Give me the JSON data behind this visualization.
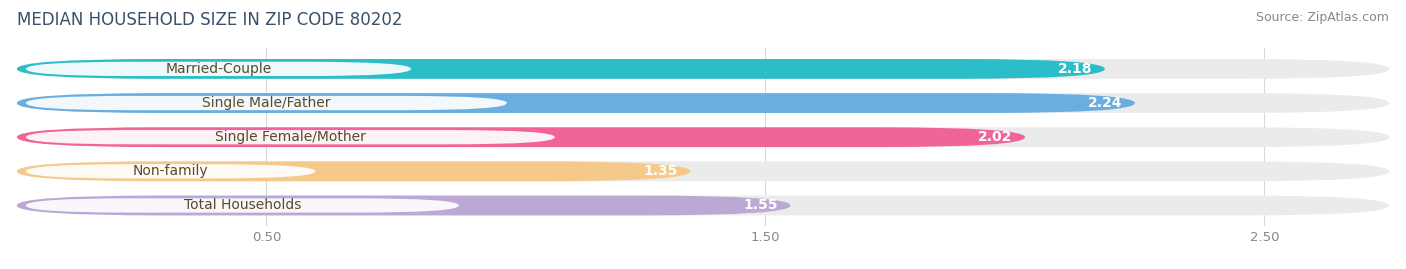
{
  "title": "MEDIAN HOUSEHOLD SIZE IN ZIP CODE 80202",
  "source": "Source: ZipAtlas.com",
  "categories": [
    "Married-Couple",
    "Single Male/Father",
    "Single Female/Mother",
    "Non-family",
    "Total Households"
  ],
  "values": [
    2.18,
    2.24,
    2.02,
    1.35,
    1.55
  ],
  "bar_colors": [
    "#2BBEC8",
    "#6AAEE0",
    "#F0649A",
    "#F5C98A",
    "#BBA8D4"
  ],
  "bar_bg_color": "#EBEBEB",
  "xlim_max": 2.75,
  "xticks": [
    0.5,
    1.5,
    2.5
  ],
  "title_fontsize": 12,
  "source_fontsize": 9,
  "label_fontsize": 10,
  "value_fontsize": 10,
  "bar_height": 0.58,
  "bar_gap": 0.3,
  "background_color": "#FFFFFF",
  "title_color": "#3A5068",
  "source_color": "#888888",
  "label_dark_color": "#5A4A2A",
  "grid_color": "#D8D8D8"
}
